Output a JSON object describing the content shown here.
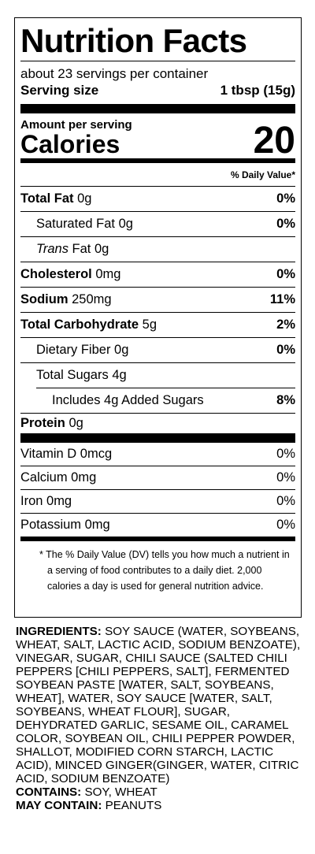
{
  "title": "Nutrition Facts",
  "servings": "about 23 servings per container",
  "serving_size": {
    "label": "Serving size",
    "value": "1 tbsp (15g)"
  },
  "amount_per_serving": "Amount per serving",
  "calories": {
    "label": "Calories",
    "value": "20"
  },
  "dv_header": "% Daily Value*",
  "nutrients": [
    {
      "name": "Total Fat",
      "amount": "0g",
      "dv": "0%"
    },
    {
      "name": "Saturated Fat",
      "amount": "0g",
      "dv": "0%"
    },
    {
      "name_prefix": "Trans",
      "name": "Fat",
      "amount": "0g"
    },
    {
      "name": "Cholesterol",
      "amount": "0mg",
      "dv": "0%"
    },
    {
      "name": "Sodium",
      "amount": "250mg",
      "dv": "11%"
    },
    {
      "name": "Total Carbohydrate",
      "amount": "5g",
      "dv": "2%"
    },
    {
      "name": "Dietary Fiber",
      "amount": "0g",
      "dv": "0%"
    },
    {
      "name": "Total Sugars",
      "amount": "4g"
    },
    {
      "name": "Includes 4g Added Sugars",
      "dv": "8%"
    },
    {
      "name": "Protein",
      "amount": "0g"
    }
  ],
  "vitamins": [
    {
      "name": "Vitamin D 0mcg",
      "dv": "0%"
    },
    {
      "name": "Calcium 0mg",
      "dv": "0%"
    },
    {
      "name": "Iron 0mg",
      "dv": "0%"
    },
    {
      "name": "Potassium 0mg",
      "dv": "0%"
    }
  ],
  "footnote": "* The % Daily Value (DV) tells you how much a nutrient in a serving of food contributes to a daily diet. 2,000 calories a day is used for general nutrition advice.",
  "ingredients": {
    "label": "INGREDIENTS:",
    "text": "SOY SAUCE (WATER, SOYBEANS, WHEAT, SALT, LACTIC ACID, SODIUM BENZOATE), VINEGAR, SUGAR, CHILI SAUCE (SALTED CHILI PEPPERS [CHILI PEPPERS, SALT], FERMENTED SOYBEAN PASTE [WATER, SALT, SOYBEANS, WHEAT], WATER, SOY SAUCE [WATER, SALT, SOYBEANS, WHEAT FLOUR], SUGAR, DEHYDRATED GARLIC, SESAME OIL, CARAMEL COLOR, SOYBEAN OIL, CHILI PEPPER POWDER, SHALLOT, MODIFIED CORN STARCH, LACTIC ACID), MINCED GINGER(GINGER, WATER, CITRIC ACID, SODIUM BENZOATE)"
  },
  "contains": {
    "label": "CONTAINS:",
    "text": "SOY, WHEAT"
  },
  "may_contain": {
    "label": "MAY CONTAIN:",
    "text": "PEANUTS"
  }
}
